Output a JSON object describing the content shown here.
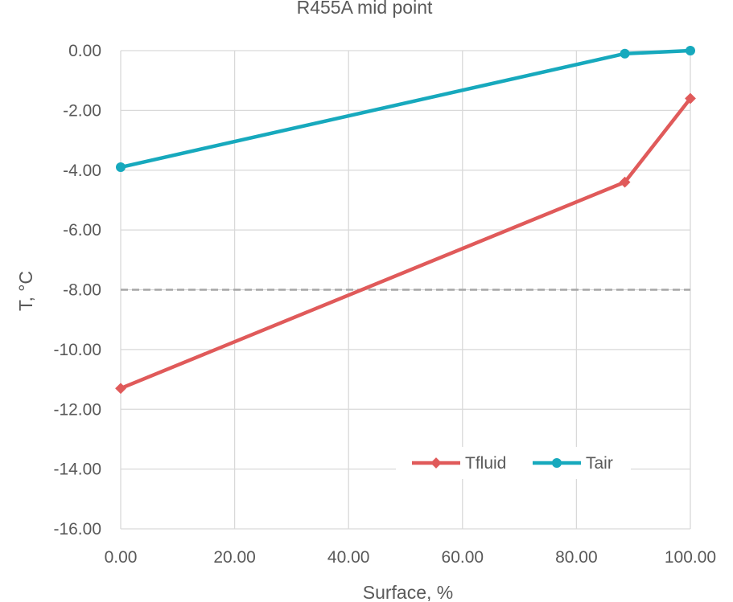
{
  "chart_data": {
    "type": "line",
    "title": "R455A mid point",
    "xlabel": "Surface, %",
    "ylabel": "T, °C",
    "xlim": [
      0,
      100
    ],
    "ylim": [
      -16,
      0
    ],
    "x_ticks": [
      0,
      20,
      40,
      60,
      80,
      100
    ],
    "y_ticks": [
      0,
      -2,
      -4,
      -6,
      -8,
      -10,
      -12,
      -14,
      -16
    ],
    "x_tick_labels": [
      "0.00",
      "20.00",
      "40.00",
      "60.00",
      "80.00",
      "100.00"
    ],
    "y_tick_labels": [
      "0.00",
      "-2.00",
      "-4.00",
      "-6.00",
      "-8.00",
      "-10.00",
      "-12.00",
      "-14.00",
      "-16.00"
    ],
    "grid": true,
    "legend_position": "bottom-right",
    "reference_line": {
      "y": -8,
      "style": "dashed",
      "color": "#a6a6a6"
    },
    "series": [
      {
        "name": "Tfluid",
        "marker": "diamond",
        "color": "#e05a5a",
        "x": [
          0,
          88.5,
          100
        ],
        "y": [
          -11.3,
          -4.4,
          -1.6
        ]
      },
      {
        "name": "Tair",
        "marker": "circle",
        "color": "#17a9bd",
        "x": [
          0,
          88.5,
          100
        ],
        "y": [
          -3.9,
          -0.1,
          0.0
        ]
      }
    ]
  }
}
